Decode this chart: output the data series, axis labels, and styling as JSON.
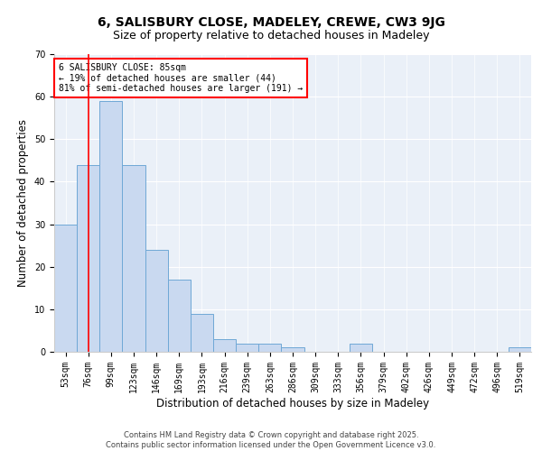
{
  "title1": "6, SALISBURY CLOSE, MADELEY, CREWE, CW3 9JG",
  "title2": "Size of property relative to detached houses in Madeley",
  "xlabel": "Distribution of detached houses by size in Madeley",
  "ylabel": "Number of detached properties",
  "categories": [
    "53sqm",
    "76sqm",
    "99sqm",
    "123sqm",
    "146sqm",
    "169sqm",
    "193sqm",
    "216sqm",
    "239sqm",
    "263sqm",
    "286sqm",
    "309sqm",
    "333sqm",
    "356sqm",
    "379sqm",
    "402sqm",
    "426sqm",
    "449sqm",
    "472sqm",
    "496sqm",
    "519sqm"
  ],
  "values": [
    30,
    44,
    59,
    44,
    24,
    17,
    9,
    3,
    2,
    2,
    1,
    0,
    0,
    2,
    0,
    0,
    0,
    0,
    0,
    0,
    1
  ],
  "bar_color": "#c9d9f0",
  "bar_edge_color": "#6fa8d6",
  "vline_x": 1.0,
  "vline_color": "red",
  "annotation_box_text": "6 SALISBURY CLOSE: 85sqm\n← 19% of detached houses are smaller (44)\n81% of semi-detached houses are larger (191) →",
  "ylim": [
    0,
    70
  ],
  "yticks": [
    0,
    10,
    20,
    30,
    40,
    50,
    60,
    70
  ],
  "bg_color": "#eaf0f8",
  "footer_text": "Contains HM Land Registry data © Crown copyright and database right 2025.\nContains public sector information licensed under the Open Government Licence v3.0.",
  "title1_fontsize": 10,
  "title2_fontsize": 9,
  "xlabel_fontsize": 8.5,
  "ylabel_fontsize": 8.5,
  "tick_fontsize": 7,
  "annotation_fontsize": 7,
  "footer_fontsize": 6
}
